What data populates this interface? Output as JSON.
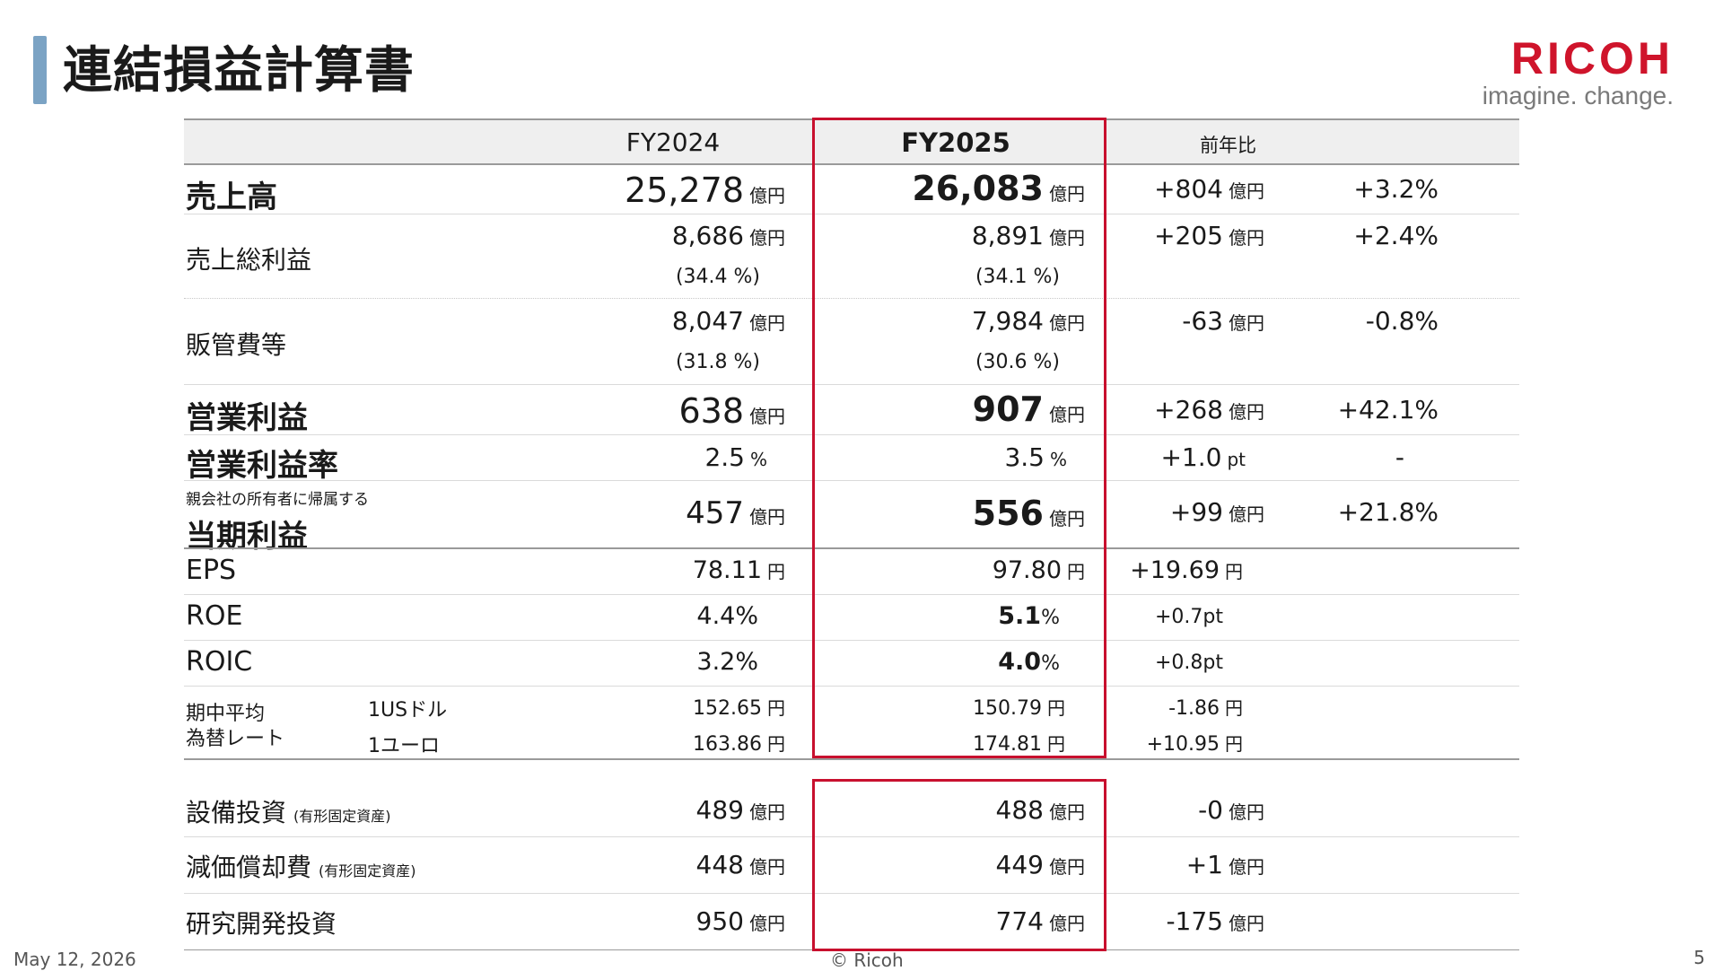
{
  "title": "連結損益計算書",
  "logo": {
    "brand": "RICOH",
    "tagline": "imagine. change."
  },
  "header": {
    "fy2024": "FY2024",
    "fy2025": "FY2025",
    "yoy": "前年比"
  },
  "unit_oku": "億円",
  "unit_yen": "円",
  "unit_pct": "%",
  "unit_pt": "pt",
  "rows": {
    "sales": {
      "label": "売上高",
      "fy2024": "25,278",
      "fy2025": "26,083",
      "diff": "+804",
      "pct": "+3.2%"
    },
    "gross": {
      "label": "売上総利益",
      "fy2024": "8,686",
      "fy2024_ratio": "(34.4 %)",
      "fy2025": "8,891",
      "fy2025_ratio": "(34.1 %)",
      "diff": "+205",
      "pct": "+2.4%"
    },
    "sga": {
      "label": "販管費等",
      "fy2024": "8,047",
      "fy2024_ratio": "(31.8 %)",
      "fy2025": "7,984",
      "fy2025_ratio": "(30.6 %)",
      "diff": "-63",
      "pct": "-0.8%"
    },
    "op": {
      "label": "営業利益",
      "fy2024": "638",
      "fy2025": "907",
      "diff": "+268",
      "pct": "+42.1%"
    },
    "op_rate": {
      "label": "営業利益率",
      "fy2024": "2.5",
      "fy2025": "3.5",
      "diff": "+1.0",
      "pct": "-"
    },
    "net": {
      "sublabel": "親会社の所有者に帰属する",
      "label": "当期利益",
      "fy2024": "457",
      "fy2025": "556",
      "diff": "+99",
      "pct": "+21.8%"
    },
    "eps": {
      "label": "EPS",
      "fy2024": "78.11",
      "fy2025": "97.80",
      "diff": "+19.69"
    },
    "roe": {
      "label": "ROE",
      "fy2024": "4.4%",
      "fy2025": "5.1",
      "diff": "+0.7pt"
    },
    "roic": {
      "label": "ROIC",
      "fy2024": "3.2%",
      "fy2025": "4.0",
      "diff": "+0.8pt"
    },
    "fx": {
      "label1": "期中平均",
      "label2": "為替レート",
      "usd_label": "1USドル",
      "usd_fy2024": "152.65",
      "usd_fy2025": "150.79",
      "usd_diff": "-1.86",
      "eur_label": "1ユーロ",
      "eur_fy2024": "163.86",
      "eur_fy2025": "174.81",
      "eur_diff": "+10.95"
    },
    "capex": {
      "label": "設備投資",
      "note": "(有形固定資産)",
      "fy2024": "489",
      "fy2025": "488",
      "diff": "-0"
    },
    "dep": {
      "label": "減価償却費",
      "note": "(有形固定資産)",
      "fy2024": "448",
      "fy2025": "449",
      "diff": "+1"
    },
    "rnd": {
      "label": "研究開発投資",
      "fy2024": "950",
      "fy2025": "774",
      "diff": "-175"
    }
  },
  "footer": {
    "date": "May 12, 2026",
    "copyright": "© Ricoh",
    "page": "5"
  },
  "colors": {
    "accent_bar": "#7ba3c4",
    "highlight": "#c8102e",
    "brand": "#cf142b"
  }
}
